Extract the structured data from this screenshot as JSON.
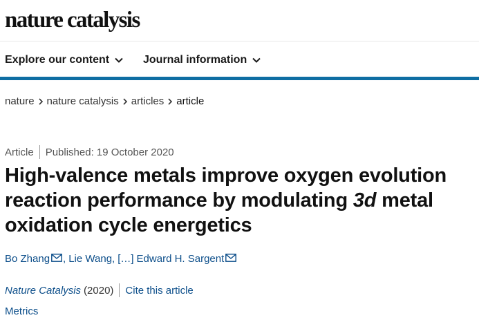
{
  "header": {
    "logo": "nature catalysis"
  },
  "nav": {
    "explore": "Explore our content",
    "journal": "Journal information"
  },
  "breadcrumb": [
    "nature",
    "nature catalysis",
    "articles",
    "article"
  ],
  "article": {
    "type": "Article",
    "published": "Published: 19 October 2020",
    "title_before": "High-valence metals improve oxygen evolution reaction performance by modulating ",
    "title_em": "3d",
    "title_after": " metal oxidation cycle energetics",
    "authors": {
      "first": "Bo Zhang",
      "second": "Lie Wang,",
      "ellipsis": "[…]",
      "last": "Edward H. Sargent"
    },
    "journal": "Nature Catalysis",
    "year": "(2020)",
    "cite": "Cite this article",
    "metrics": "Metrics"
  },
  "colors": {
    "accent_rule": "#0e6ea3",
    "link": "#0c4e8a"
  }
}
